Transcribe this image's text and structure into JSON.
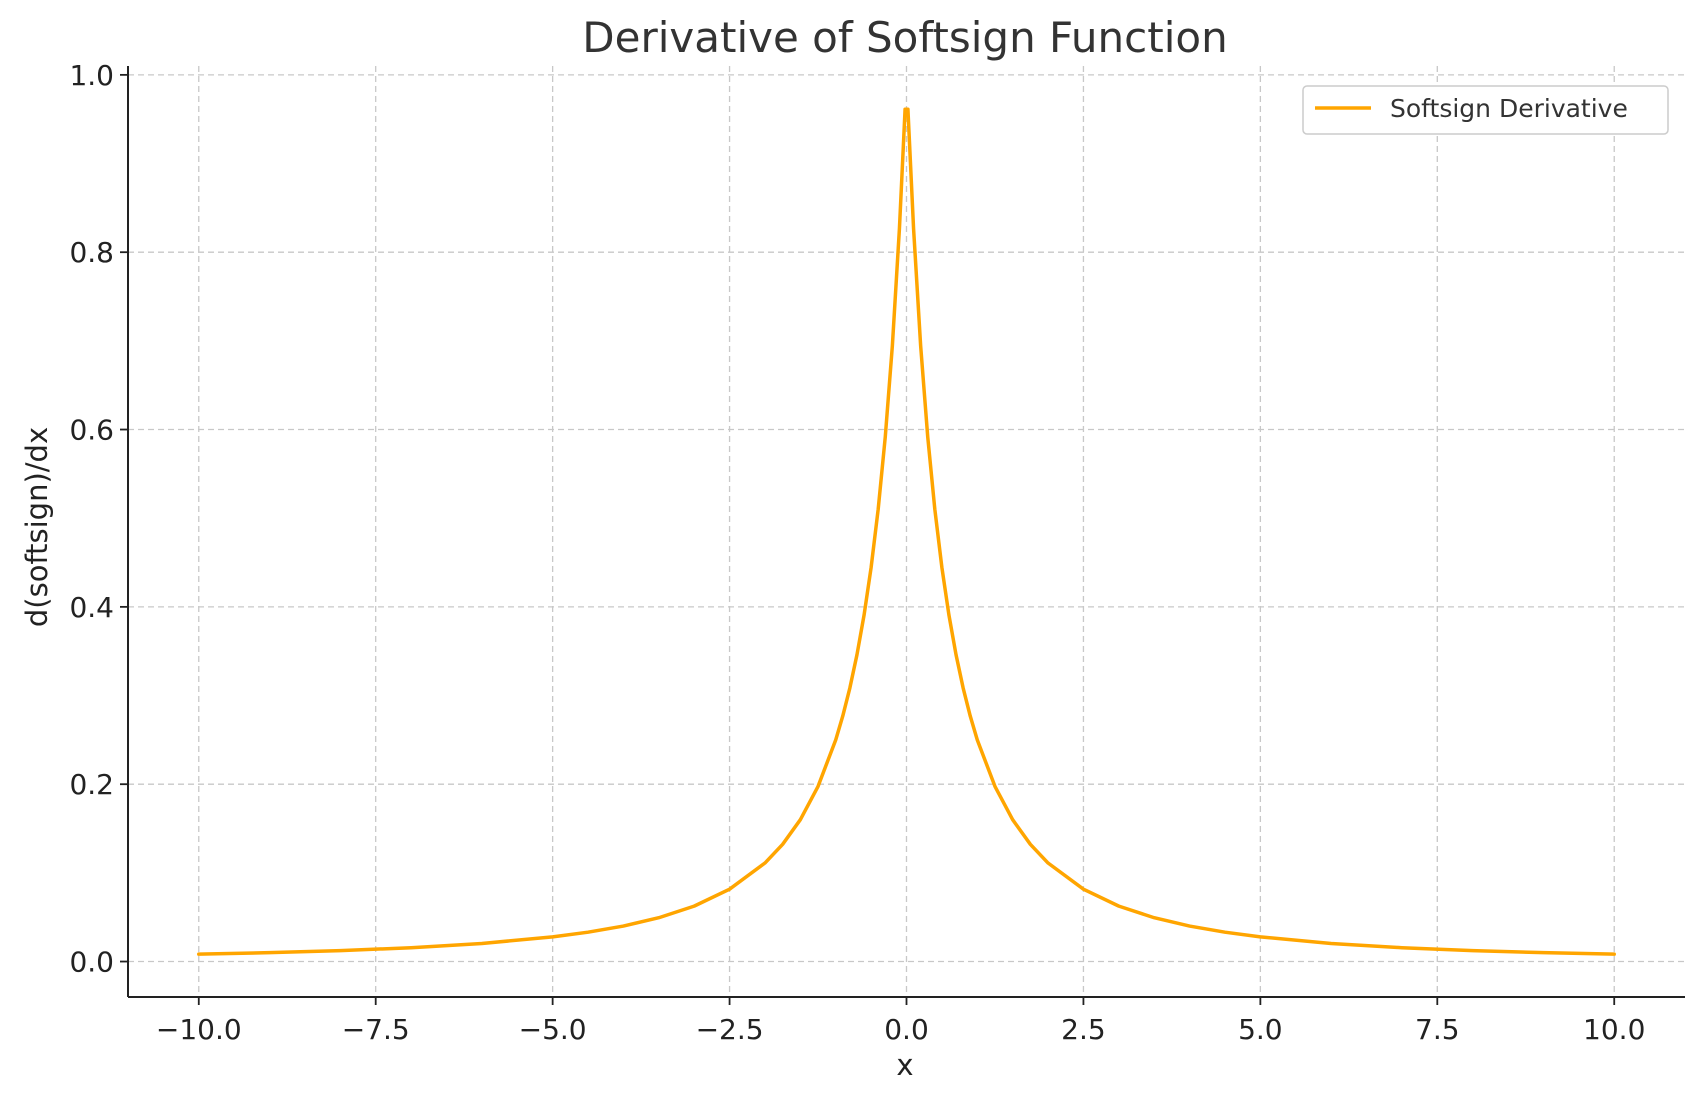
{
  "chart_data": {
    "type": "line",
    "title": "Derivative of Softsign Function",
    "xlabel": "x",
    "ylabel": "d(softsign)/dx",
    "xlim": [
      -11,
      11
    ],
    "ylim": [
      -0.04,
      1.01
    ],
    "x_ticks": [
      -10.0,
      -7.5,
      -5.0,
      -2.5,
      0.0,
      2.5,
      5.0,
      7.5,
      10.0
    ],
    "x_tick_labels": [
      "−10.0",
      "−7.5",
      "−5.0",
      "−2.5",
      "0.0",
      "2.5",
      "5.0",
      "7.5",
      "10.0"
    ],
    "y_ticks": [
      0.0,
      0.2,
      0.4,
      0.6,
      0.8,
      1.0
    ],
    "y_tick_labels": [
      "0.0",
      "0.2",
      "0.4",
      "0.6",
      "0.8",
      "1.0"
    ],
    "grid": true,
    "legend_position": "top-right",
    "series": [
      {
        "name": "Softsign Derivative",
        "color": "#FFA500",
        "x": [
          -10.0,
          -9.0,
          -8.0,
          -7.0,
          -6.0,
          -5.0,
          -4.5,
          -4.0,
          -3.5,
          -3.0,
          -2.5,
          -2.0,
          -1.75,
          -1.5,
          -1.25,
          -1.0,
          -0.9,
          -0.8,
          -0.7,
          -0.6,
          -0.5,
          -0.4,
          -0.3,
          -0.2,
          -0.1,
          -0.02,
          0.0,
          0.02,
          0.1,
          0.2,
          0.3,
          0.4,
          0.5,
          0.6,
          0.7,
          0.8,
          0.9,
          1.0,
          1.25,
          1.5,
          1.75,
          2.0,
          2.5,
          3.0,
          3.5,
          4.0,
          4.5,
          5.0,
          6.0,
          7.0,
          8.0,
          9.0,
          10.0
        ],
        "y": [
          0.0083,
          0.01,
          0.0123,
          0.0156,
          0.0204,
          0.0278,
          0.0331,
          0.04,
          0.0494,
          0.0625,
          0.0816,
          0.1111,
          0.1322,
          0.16,
          0.1975,
          0.25,
          0.277,
          0.3086,
          0.346,
          0.3906,
          0.4444,
          0.5102,
          0.5917,
          0.6944,
          0.8264,
          0.9612,
          0.9612,
          0.9612,
          0.8264,
          0.6944,
          0.5917,
          0.5102,
          0.4444,
          0.3906,
          0.346,
          0.3086,
          0.277,
          0.25,
          0.1975,
          0.16,
          0.1322,
          0.1111,
          0.0816,
          0.0625,
          0.0494,
          0.04,
          0.0331,
          0.0278,
          0.0204,
          0.0156,
          0.0123,
          0.01,
          0.0083
        ]
      }
    ]
  }
}
